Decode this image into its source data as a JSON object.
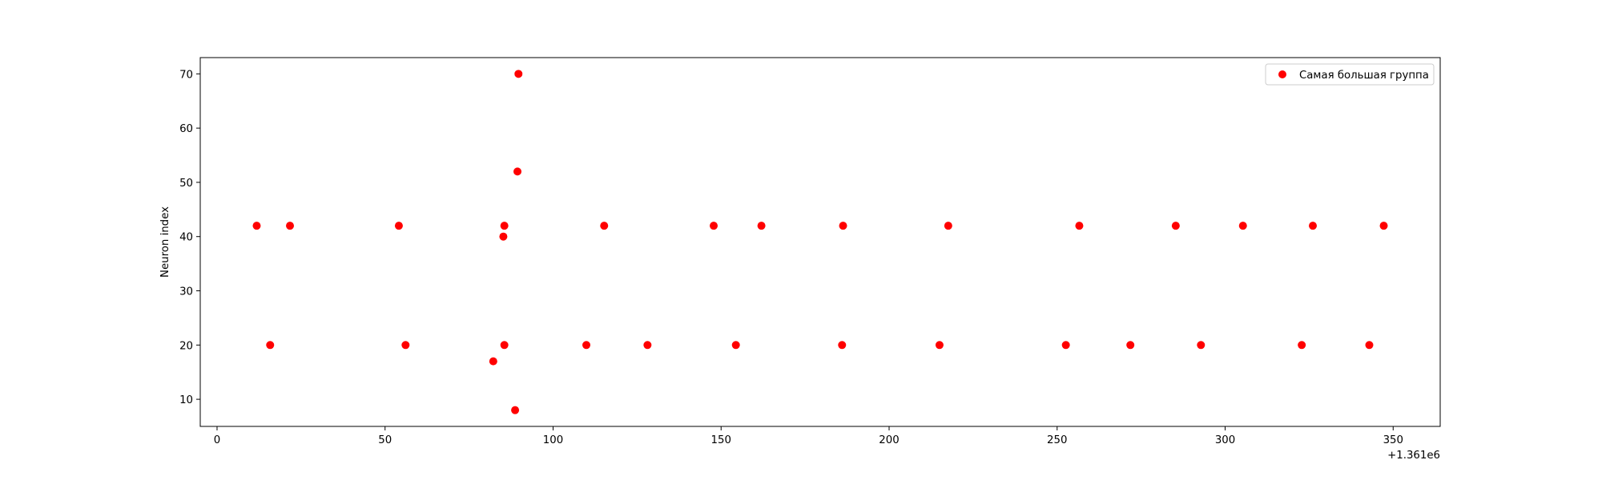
{
  "chart_data": {
    "type": "scatter",
    "title": "",
    "xlabel": "",
    "ylabel": "Neuron index",
    "x_offset_label": "+1.361e6",
    "xlim": [
      -5,
      364
    ],
    "ylim": [
      5,
      73
    ],
    "xticks": [
      0,
      50,
      100,
      150,
      200,
      250,
      300,
      350
    ],
    "yticks": [
      10,
      20,
      30,
      40,
      50,
      60,
      70
    ],
    "grid": false,
    "legend_position": "top-right",
    "marker_color": "#ff0000",
    "series": [
      {
        "name": "Самая большая группа",
        "color": "#ff0000",
        "points": [
          {
            "x": 1361011.8,
            "y": 42
          },
          {
            "x": 1361015.8,
            "y": 20
          },
          {
            "x": 1361021.7,
            "y": 42
          },
          {
            "x": 1361054.1,
            "y": 42
          },
          {
            "x": 1361056.1,
            "y": 20
          },
          {
            "x": 1361082.2,
            "y": 17
          },
          {
            "x": 1361085.2,
            "y": 40
          },
          {
            "x": 1361085.5,
            "y": 42
          },
          {
            "x": 1361085.5,
            "y": 20
          },
          {
            "x": 1361088.7,
            "y": 8
          },
          {
            "x": 1361089.4,
            "y": 52
          },
          {
            "x": 1361089.7,
            "y": 70
          },
          {
            "x": 1361109.9,
            "y": 20
          },
          {
            "x": 1361115.2,
            "y": 42
          },
          {
            "x": 1361128.1,
            "y": 20
          },
          {
            "x": 1361147.8,
            "y": 42
          },
          {
            "x": 1361154.4,
            "y": 20
          },
          {
            "x": 1361162.0,
            "y": 42
          },
          {
            "x": 1361186.0,
            "y": 20
          },
          {
            "x": 1361186.3,
            "y": 42
          },
          {
            "x": 1361215.0,
            "y": 20
          },
          {
            "x": 1361217.6,
            "y": 42
          },
          {
            "x": 1361252.6,
            "y": 20
          },
          {
            "x": 1361256.6,
            "y": 42
          },
          {
            "x": 1361271.8,
            "y": 20
          },
          {
            "x": 1361285.3,
            "y": 42
          },
          {
            "x": 1361292.8,
            "y": 20
          },
          {
            "x": 1361305.3,
            "y": 42
          },
          {
            "x": 1361322.8,
            "y": 20
          },
          {
            "x": 1361326.1,
            "y": 42
          },
          {
            "x": 1361342.9,
            "y": 20
          },
          {
            "x": 1361347.2,
            "y": 42
          }
        ]
      }
    ]
  }
}
